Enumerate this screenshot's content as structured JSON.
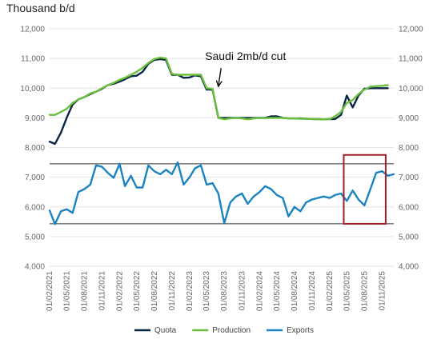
{
  "chart_data": {
    "type": "line",
    "unit_label": "Thousand b/d",
    "ylim": [
      4000,
      12000
    ],
    "y_ticks": [
      "4,000",
      "5,000",
      "6,000",
      "7,000",
      "8,000",
      "9,000",
      "10,000",
      "11,000",
      "12,000"
    ],
    "y_tick_values": [
      4000,
      5000,
      6000,
      7000,
      8000,
      9000,
      10000,
      11000,
      12000
    ],
    "x_range": [
      "2021-02-01",
      "2026-01-01"
    ],
    "x_ticks": [
      "01/02/2021",
      "01/05/2021",
      "01/08/2021",
      "01/11/2021",
      "01/02/2022",
      "01/05/2022",
      "01/08/2022",
      "01/11/2022",
      "01/02/2023",
      "01/05/2023",
      "01/08/2023",
      "01/11/2023",
      "01/02/2024",
      "01/05/2024",
      "01/08/2024",
      "01/11/2024",
      "01/02/2025",
      "01/05/2025",
      "01/08/2025",
      "01/11/2025"
    ],
    "x_tick_dates": [
      "2021-02-01",
      "2021-05-01",
      "2021-08-01",
      "2021-11-01",
      "2022-02-01",
      "2022-05-01",
      "2022-08-01",
      "2022-11-01",
      "2023-02-01",
      "2023-05-01",
      "2023-08-01",
      "2023-11-01",
      "2024-02-01",
      "2024-05-01",
      "2024-08-01",
      "2024-11-01",
      "2025-02-01",
      "2025-05-01",
      "2025-08-01",
      "2025-11-01"
    ],
    "grid": true,
    "legend_position": "bottom",
    "reference_lines": [
      7450,
      5430
    ],
    "highlight_box": {
      "x0": "2025-04-15",
      "x1": "2025-11-20",
      "y0": 5430,
      "y1": 7750,
      "color": "#a31f24"
    },
    "annotations": [
      {
        "text": "Saudi 2mb/d cut",
        "x": "2023-05-01",
        "y": 11000,
        "arrow_to": {
          "x": "2023-07-01",
          "y": 9950
        }
      }
    ],
    "series": [
      {
        "name": "Quota",
        "color": "#0b2545",
        "points": [
          [
            "2021-02-01",
            8200
          ],
          [
            "2021-03-01",
            8120
          ],
          [
            "2021-04-01",
            8500
          ],
          [
            "2021-05-01",
            9000
          ],
          [
            "2021-06-01",
            9450
          ],
          [
            "2021-07-01",
            9620
          ],
          [
            "2021-08-01",
            9700
          ],
          [
            "2021-09-01",
            9800
          ],
          [
            "2021-10-01",
            9880
          ],
          [
            "2021-11-01",
            9980
          ],
          [
            "2021-12-01",
            10100
          ],
          [
            "2022-01-01",
            10150
          ],
          [
            "2022-02-01",
            10220
          ],
          [
            "2022-03-01",
            10300
          ],
          [
            "2022-04-01",
            10400
          ],
          [
            "2022-05-01",
            10420
          ],
          [
            "2022-06-01",
            10550
          ],
          [
            "2022-07-01",
            10820
          ],
          [
            "2022-08-01",
            10950
          ],
          [
            "2022-09-01",
            10980
          ],
          [
            "2022-10-01",
            10950
          ],
          [
            "2022-11-01",
            10450
          ],
          [
            "2022-12-01",
            10450
          ],
          [
            "2023-01-01",
            10350
          ],
          [
            "2023-02-01",
            10360
          ],
          [
            "2023-03-01",
            10430
          ],
          [
            "2023-04-01",
            10400
          ],
          [
            "2023-05-01",
            9950
          ],
          [
            "2023-06-01",
            9950
          ],
          [
            "2023-07-01",
            9000
          ],
          [
            "2023-08-01",
            9000
          ],
          [
            "2023-09-01",
            9000
          ],
          [
            "2023-10-01",
            9000
          ],
          [
            "2023-11-01",
            9000
          ],
          [
            "2023-12-01",
            9000
          ],
          [
            "2024-01-01",
            9000
          ],
          [
            "2024-02-01",
            9000
          ],
          [
            "2024-03-01",
            9000
          ],
          [
            "2024-04-01",
            9050
          ],
          [
            "2024-05-01",
            9050
          ],
          [
            "2024-06-01",
            9000
          ],
          [
            "2024-07-01",
            8980
          ],
          [
            "2024-08-01",
            8980
          ],
          [
            "2024-09-01",
            8980
          ],
          [
            "2024-10-01",
            8970
          ],
          [
            "2024-11-01",
            8960
          ],
          [
            "2024-12-01",
            8960
          ],
          [
            "2025-01-01",
            8950
          ],
          [
            "2025-02-01",
            8960
          ],
          [
            "2025-03-01",
            8960
          ],
          [
            "2025-04-01",
            9100
          ],
          [
            "2025-05-01",
            9750
          ],
          [
            "2025-06-01",
            9350
          ],
          [
            "2025-07-01",
            9750
          ],
          [
            "2025-08-01",
            9980
          ],
          [
            "2025-09-01",
            10000
          ],
          [
            "2025-10-01",
            10000
          ],
          [
            "2025-11-01",
            10000
          ],
          [
            "2025-12-01",
            10000
          ]
        ]
      },
      {
        "name": "Production",
        "color": "#6abf3c",
        "points": [
          [
            "2021-02-01",
            9100
          ],
          [
            "2021-03-01",
            9100
          ],
          [
            "2021-04-01",
            9200
          ],
          [
            "2021-05-01",
            9300
          ],
          [
            "2021-06-01",
            9500
          ],
          [
            "2021-07-01",
            9620
          ],
          [
            "2021-08-01",
            9700
          ],
          [
            "2021-09-01",
            9820
          ],
          [
            "2021-10-01",
            9880
          ],
          [
            "2021-11-01",
            10000
          ],
          [
            "2021-12-01",
            10100
          ],
          [
            "2022-01-01",
            10180
          ],
          [
            "2022-02-01",
            10280
          ],
          [
            "2022-03-01",
            10350
          ],
          [
            "2022-04-01",
            10450
          ],
          [
            "2022-05-01",
            10550
          ],
          [
            "2022-06-01",
            10680
          ],
          [
            "2022-07-01",
            10850
          ],
          [
            "2022-08-01",
            10980
          ],
          [
            "2022-09-01",
            11030
          ],
          [
            "2022-10-01",
            11000
          ],
          [
            "2022-11-01",
            10480
          ],
          [
            "2022-12-01",
            10450
          ],
          [
            "2023-01-01",
            10450
          ],
          [
            "2023-02-01",
            10450
          ],
          [
            "2023-03-01",
            10450
          ],
          [
            "2023-04-01",
            10450
          ],
          [
            "2023-05-01",
            10000
          ],
          [
            "2023-06-01",
            9980
          ],
          [
            "2023-07-01",
            9000
          ],
          [
            "2023-08-01",
            8950
          ],
          [
            "2023-09-01",
            8980
          ],
          [
            "2023-10-01",
            9000
          ],
          [
            "2023-11-01",
            8980
          ],
          [
            "2023-12-01",
            8950
          ],
          [
            "2024-01-01",
            8980
          ],
          [
            "2024-02-01",
            9000
          ],
          [
            "2024-03-01",
            8990
          ],
          [
            "2024-04-01",
            9000
          ],
          [
            "2024-05-01",
            9000
          ],
          [
            "2024-06-01",
            9000
          ],
          [
            "2024-07-01",
            8980
          ],
          [
            "2024-08-01",
            8980
          ],
          [
            "2024-09-01",
            8970
          ],
          [
            "2024-10-01",
            8970
          ],
          [
            "2024-11-01",
            8960
          ],
          [
            "2024-12-01",
            8950
          ],
          [
            "2025-01-01",
            8950
          ],
          [
            "2025-02-01",
            8960
          ],
          [
            "2025-03-01",
            9050
          ],
          [
            "2025-04-01",
            9200
          ],
          [
            "2025-05-01",
            9500
          ],
          [
            "2025-06-01",
            9600
          ],
          [
            "2025-07-01",
            9800
          ],
          [
            "2025-08-01",
            9950
          ],
          [
            "2025-09-01",
            10050
          ],
          [
            "2025-10-01",
            10070
          ],
          [
            "2025-11-01",
            10080
          ],
          [
            "2025-12-01",
            10100
          ]
        ]
      },
      {
        "name": "Exports",
        "color": "#1a83c0",
        "points": [
          [
            "2021-02-01",
            5880
          ],
          [
            "2021-03-01",
            5420
          ],
          [
            "2021-04-01",
            5850
          ],
          [
            "2021-05-01",
            5920
          ],
          [
            "2021-06-01",
            5800
          ],
          [
            "2021-07-01",
            6500
          ],
          [
            "2021-08-01",
            6600
          ],
          [
            "2021-09-01",
            6750
          ],
          [
            "2021-10-01",
            7400
          ],
          [
            "2021-11-01",
            7350
          ],
          [
            "2021-12-01",
            7150
          ],
          [
            "2022-01-01",
            6980
          ],
          [
            "2022-02-01",
            7450
          ],
          [
            "2022-03-01",
            6700
          ],
          [
            "2022-04-01",
            7050
          ],
          [
            "2022-05-01",
            6650
          ],
          [
            "2022-06-01",
            6650
          ],
          [
            "2022-07-01",
            7400
          ],
          [
            "2022-08-01",
            7200
          ],
          [
            "2022-09-01",
            7100
          ],
          [
            "2022-10-01",
            7250
          ],
          [
            "2022-11-01",
            7100
          ],
          [
            "2022-12-01",
            7500
          ],
          [
            "2023-01-01",
            6750
          ],
          [
            "2023-02-01",
            7000
          ],
          [
            "2023-03-01",
            7300
          ],
          [
            "2023-04-01",
            7400
          ],
          [
            "2023-05-01",
            6750
          ],
          [
            "2023-06-01",
            6800
          ],
          [
            "2023-07-01",
            6450
          ],
          [
            "2023-08-01",
            5450
          ],
          [
            "2023-09-01",
            6150
          ],
          [
            "2023-10-01",
            6350
          ],
          [
            "2023-11-01",
            6450
          ],
          [
            "2023-12-01",
            6100
          ],
          [
            "2024-01-01",
            6350
          ],
          [
            "2024-02-01",
            6500
          ],
          [
            "2024-03-01",
            6700
          ],
          [
            "2024-04-01",
            6600
          ],
          [
            "2024-05-01",
            6400
          ],
          [
            "2024-06-01",
            6300
          ],
          [
            "2024-07-01",
            5680
          ],
          [
            "2024-08-01",
            6000
          ],
          [
            "2024-09-01",
            5850
          ],
          [
            "2024-10-01",
            6150
          ],
          [
            "2024-11-01",
            6250
          ],
          [
            "2024-12-01",
            6300
          ],
          [
            "2025-01-01",
            6350
          ],
          [
            "2025-02-01",
            6300
          ],
          [
            "2025-03-01",
            6400
          ],
          [
            "2025-04-01",
            6450
          ],
          [
            "2025-05-01",
            6200
          ],
          [
            "2025-06-01",
            6550
          ],
          [
            "2025-07-01",
            6250
          ],
          [
            "2025-08-01",
            6050
          ],
          [
            "2025-09-01",
            6600
          ],
          [
            "2025-10-01",
            7150
          ],
          [
            "2025-11-01",
            7200
          ],
          [
            "2025-12-01",
            7050
          ],
          [
            "2026-01-01",
            7100
          ]
        ]
      }
    ]
  }
}
